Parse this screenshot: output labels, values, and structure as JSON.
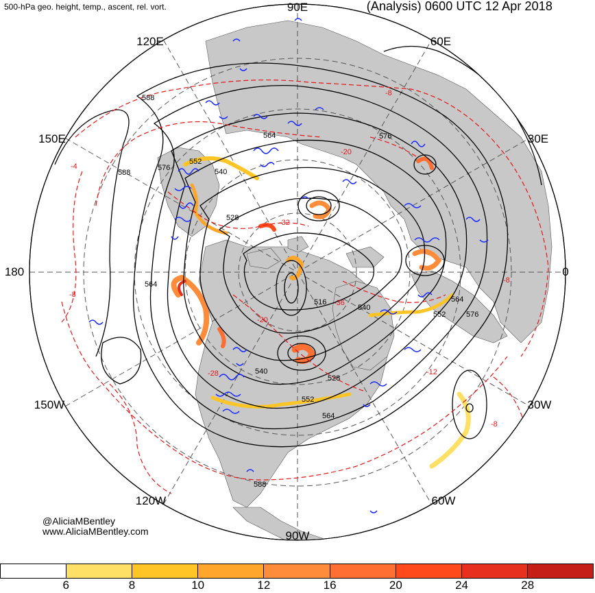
{
  "header": {
    "description": "500-hPa geo. height, temp., ascent, rel. vort.",
    "run": "(Analysis) 0600 UTC 12 Apr 2018"
  },
  "credits": {
    "handle": "@AliciaMBentley",
    "website": "www.AliciaMBentley.com"
  },
  "longitude_labels": {
    "lon_90e": "90E",
    "lon_60e": "60E",
    "lon_30e": "30E",
    "lon_0": "0",
    "lon_30w": "30W",
    "lon_60w": "60W",
    "lon_90w": "90W",
    "lon_120w": "120W",
    "lon_150w": "150W",
    "lon_180": "180",
    "lon_150e": "150E",
    "lon_120e": "120E"
  },
  "height_contour_labels": {
    "h588_nw": "588",
    "h588_w": "588",
    "h576_w": "576",
    "h552_w": "552",
    "h540_w": "540",
    "h564_n": "564",
    "h576_n": "576",
    "h528_w": "528",
    "h564_w": "564",
    "h516_c": "516",
    "h540_c": "540",
    "h564_e": "564",
    "h552_e": "552",
    "h576_e": "576",
    "h540_s": "540",
    "h528_s": "528",
    "h564_s": "564",
    "h552_s": "552",
    "h588_s": "588"
  },
  "temperature_contour_labels": {
    "t_m8_ne": "-8",
    "t_m4_w": "-4",
    "t_m8_w": "-8",
    "t_m8_e": "-8",
    "t_m12_se": "-12",
    "t_m8_se": "-8",
    "t_m20_n": "-20",
    "t_m32_c": "-32",
    "t_m20_c": "-20",
    "t_m28_c": "-28",
    "t_m36_c": "-36"
  },
  "legend": {
    "ticks": [
      "6",
      "8",
      "10",
      "12",
      "16",
      "20",
      "24",
      "28"
    ],
    "colors": [
      "#ffffff",
      "#ffe066",
      "#ffc526",
      "#ffa62b",
      "#ff8c3a",
      "#ff6e33",
      "#ff4a1c",
      "#e8301e",
      "#c41e16"
    ]
  },
  "colors": {
    "land": "#c8c8c8",
    "ocean": "#ffffff",
    "height_contour": "#000000",
    "temperature_contour": "#e0181b",
    "ascent_contour": "#1526ff",
    "graticule": "#555555"
  }
}
